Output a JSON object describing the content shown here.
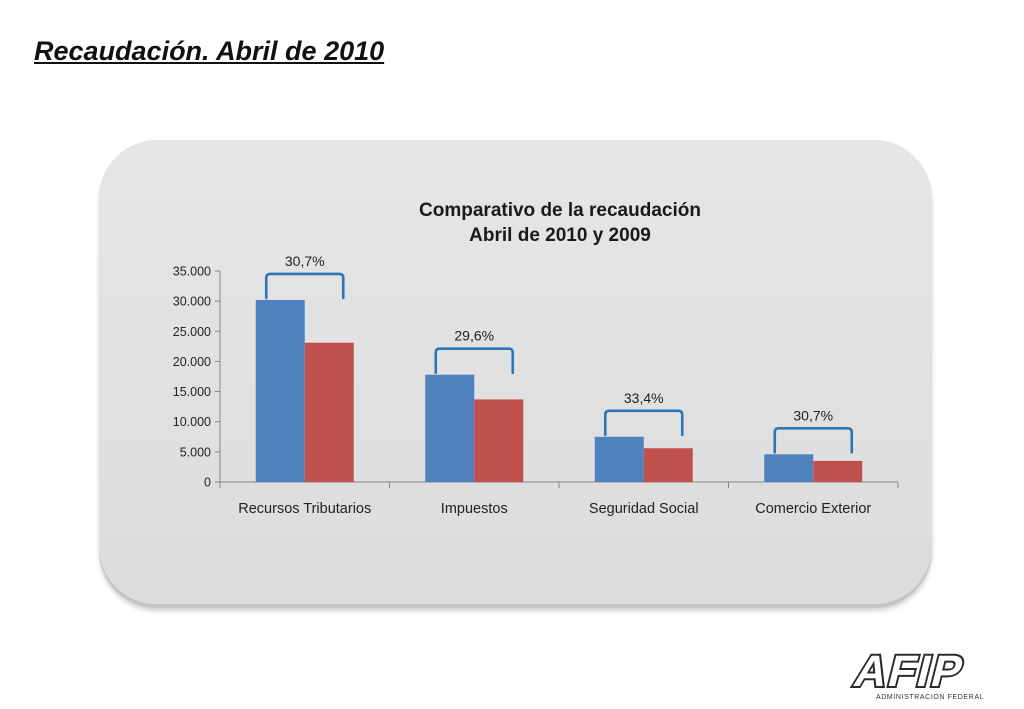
{
  "slide": {
    "title": "Recaudación. Abril de 2010"
  },
  "logo": {
    "text": "AFIP",
    "subtitle": "ADMINISTRACION FEDERAL"
  },
  "colors": {
    "series_2010": "#4f81bd",
    "series_2009": "#c0504d",
    "bracket": "#2e75b6",
    "panel": "#e2e2e2"
  },
  "chart_data": {
    "type": "bar",
    "title": "Comparativo de la recaudación",
    "subtitle": "Abril de 2010 y 2009",
    "categories": [
      "Recursos Tributarios",
      "Impuestos",
      "Seguridad Social",
      "Comercio Exterior"
    ],
    "series": [
      {
        "name": "",
        "values": [
          30200,
          17800,
          7500,
          4600
        ],
        "color": "#4f81bd"
      },
      {
        "name": "",
        "values": [
          23100,
          13700,
          5600,
          3500
        ],
        "color": "#c0504d"
      }
    ],
    "annotations": [
      "30,7%",
      "29,6%",
      "33,4%",
      "30,7%"
    ],
    "ylim": [
      0,
      35000
    ],
    "yticks": [
      0,
      5000,
      10000,
      15000,
      20000,
      25000,
      30000,
      35000
    ],
    "ytick_labels": [
      "0",
      "5.000",
      "10.000",
      "15.000",
      "20.000",
      "25.000",
      "30.000",
      "35.000"
    ],
    "xlabel": "",
    "ylabel": "",
    "legend": "none",
    "grid": false
  }
}
